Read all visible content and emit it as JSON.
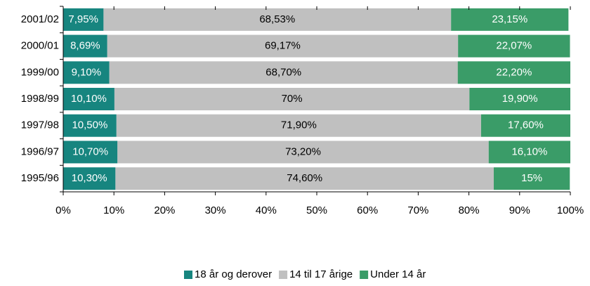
{
  "chart_data": {
    "type": "stacked_barh",
    "categories": [
      "2001/02",
      "2000/01",
      "1999/00",
      "1998/99",
      "1997/98",
      "1996/97",
      "1995/96"
    ],
    "series": [
      {
        "name": "18 år og derover",
        "color": "#17857f",
        "values": [
          7.95,
          8.69,
          9.1,
          10.1,
          10.5,
          10.7,
          10.3
        ],
        "value_labels": [
          "7,95%",
          "8,69%",
          "9,10%",
          "10,10%",
          "10,50%",
          "10,70%",
          "10,30%"
        ]
      },
      {
        "name": "14 til 17 årige",
        "color": "#c0c0c0",
        "values": [
          68.53,
          69.17,
          68.7,
          70,
          71.9,
          73.2,
          74.6
        ],
        "value_labels": [
          "68,53%",
          "69,17%",
          "68,70%",
          "70%",
          "71,90%",
          "73,20%",
          "74,60%"
        ]
      },
      {
        "name": "Under 14 år",
        "color": "#3a9c68",
        "values": [
          23.15,
          22.07,
          22.2,
          19.9,
          17.6,
          16.1,
          15
        ],
        "value_labels": [
          "23,15%",
          "22,07%",
          "22,20%",
          "19,90%",
          "17,60%",
          "16,10%",
          "15%"
        ]
      }
    ],
    "xlim": [
      0,
      100
    ],
    "xticks": [
      {
        "value": 0,
        "label": "0%"
      },
      {
        "value": 10,
        "label": "10%"
      },
      {
        "value": 20,
        "label": "20%"
      },
      {
        "value": 30,
        "label": "30%"
      },
      {
        "value": 40,
        "label": "40%"
      },
      {
        "value": 50,
        "label": "50%"
      },
      {
        "value": 60,
        "label": "60%"
      },
      {
        "value": 70,
        "label": "70%"
      },
      {
        "value": 80,
        "label": "80%"
      },
      {
        "value": 90,
        "label": "90%"
      },
      {
        "value": 100,
        "label": "100%"
      }
    ],
    "legend": "bottom"
  }
}
